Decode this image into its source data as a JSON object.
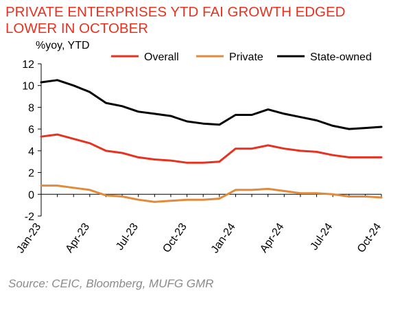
{
  "title": "PRIVATE ENTERPRISES YTD FAI GROWTH EDGED LOWER IN OCTOBER",
  "source": "Source: CEIC, Bloomberg, MUFG GMR",
  "chart_data": {
    "type": "line",
    "title": "PRIVATE ENTERPRISES YTD FAI GROWTH EDGED LOWER IN OCTOBER",
    "ylabel": "%yoy, YTD",
    "xlabel": "",
    "ylim": [
      -2,
      12
    ],
    "yticks": [
      -2,
      0,
      2,
      4,
      6,
      8,
      10,
      12
    ],
    "x": [
      "Jan-23",
      "Feb-23",
      "Mar-23",
      "Apr-23",
      "May-23",
      "Jun-23",
      "Jul-23",
      "Aug-23",
      "Sep-23",
      "Oct-23",
      "Nov-23",
      "Dec-23",
      "Jan-24",
      "Feb-24",
      "Mar-24",
      "Apr-24",
      "May-24",
      "Jun-24",
      "Jul-24",
      "Aug-24",
      "Sep-24",
      "Oct-24"
    ],
    "xtick_labels": [
      "Jan-23",
      "Apr-23",
      "Jul-23",
      "Oct-23",
      "Jan-24",
      "Apr-24",
      "Jul-24",
      "Oct-24"
    ],
    "xtick_indices": [
      0,
      3,
      6,
      9,
      12,
      15,
      18,
      21
    ],
    "legend_position": "top",
    "grid": false,
    "series": [
      {
        "name": "Overall",
        "color": "#e8311f",
        "values": [
          5.3,
          5.5,
          5.1,
          4.7,
          4.0,
          3.8,
          3.4,
          3.2,
          3.1,
          2.9,
          2.9,
          3.0,
          4.2,
          4.2,
          4.5,
          4.2,
          4.0,
          3.9,
          3.6,
          3.4,
          3.4,
          3.4
        ]
      },
      {
        "name": "Private",
        "color": "#e08a3c",
        "values": [
          0.8,
          0.8,
          0.6,
          0.4,
          -0.1,
          -0.2,
          -0.5,
          -0.7,
          -0.6,
          -0.5,
          -0.5,
          -0.4,
          0.4,
          0.4,
          0.5,
          0.3,
          0.1,
          0.1,
          0.0,
          -0.2,
          -0.2,
          -0.3
        ]
      },
      {
        "name": "State-owned",
        "color": "#000000",
        "values": [
          10.3,
          10.5,
          10.0,
          9.4,
          8.4,
          8.1,
          7.6,
          7.4,
          7.2,
          6.7,
          6.5,
          6.4,
          7.3,
          7.3,
          7.8,
          7.4,
          7.1,
          6.8,
          6.3,
          6.0,
          6.1,
          6.2
        ]
      }
    ]
  }
}
